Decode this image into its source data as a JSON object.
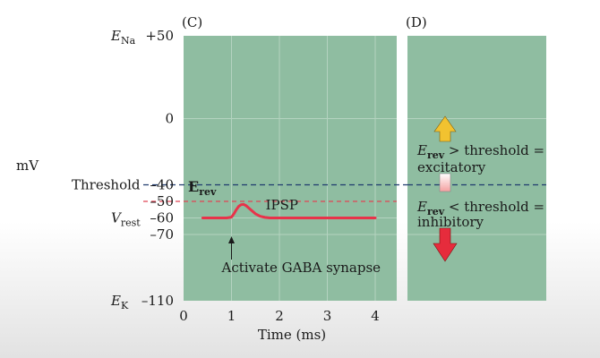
{
  "colors": {
    "panel_fill": "#8fbda1",
    "grid": "#b4d3c0",
    "threshold_line": "#1f3a6e",
    "erev_line": "#e04555",
    "trace": "#e8334a",
    "arrow_up": "#f2c230",
    "arrow_down": "#e62c3c"
  },
  "chart_data": [
    {
      "type": "line",
      "panel_label": "(C)",
      "ylabel": "mV",
      "xlabel": "Time (ms)",
      "xlim": [
        0,
        4.5
      ],
      "ylim": [
        -110,
        50
      ],
      "x_ticks": [
        0,
        1,
        2,
        3,
        4
      ],
      "y_ticks": [
        {
          "value": 50,
          "prefix": "E",
          "sub": "Na",
          "label": "+50"
        },
        {
          "value": 0,
          "prefix": "",
          "sub": "",
          "label": "0"
        },
        {
          "value": -40,
          "prefix": "Threshold",
          "sub": "",
          "label": "–40"
        },
        {
          "value": -50,
          "prefix": "",
          "sub": "",
          "label": "–50"
        },
        {
          "value": -60,
          "prefix": "V",
          "sub": "rest",
          "label": "–60"
        },
        {
          "value": -70,
          "prefix": "",
          "sub": "",
          "label": "–70"
        },
        {
          "value": -110,
          "prefix": "E",
          "sub": "K",
          "label": "–110"
        }
      ],
      "grid": true,
      "reference_lines": [
        {
          "name": "threshold",
          "y": -40,
          "style": "dashed"
        },
        {
          "name": "erev",
          "y": -50,
          "style": "dashed",
          "label_main": "E",
          "label_sub": "rev"
        }
      ],
      "series": [
        {
          "name": "IPSP",
          "x": [
            0.4,
            0.9,
            1.0,
            1.05,
            1.1,
            1.15,
            1.2,
            1.25,
            1.3,
            1.4,
            1.5,
            1.6,
            1.7,
            1.8,
            4.0
          ],
          "y": [
            -60,
            -60,
            -59.5,
            -57.5,
            -55,
            -53,
            -52,
            -51.8,
            -52.5,
            -55,
            -57.5,
            -59,
            -59.7,
            -60,
            -60
          ]
        }
      ],
      "annotations": [
        {
          "text": "IPSP",
          "x": 1.6,
          "y": -56
        },
        {
          "text": "Activate GABA synapse",
          "x": 1.0,
          "y": -80
        }
      ]
    },
    {
      "type": "diagram",
      "panel_label": "(D)",
      "ylim": [
        -110,
        50
      ],
      "reference_lines": [
        {
          "name": "threshold",
          "y": -40,
          "style": "dashed"
        }
      ],
      "labels": [
        {
          "main": "E",
          "sub": "rev",
          "rest": " > threshold =",
          "line2": "excitatory"
        },
        {
          "main": "E",
          "sub": "rev",
          "rest": " < threshold =",
          "line2": "inhibitory"
        }
      ]
    }
  ]
}
